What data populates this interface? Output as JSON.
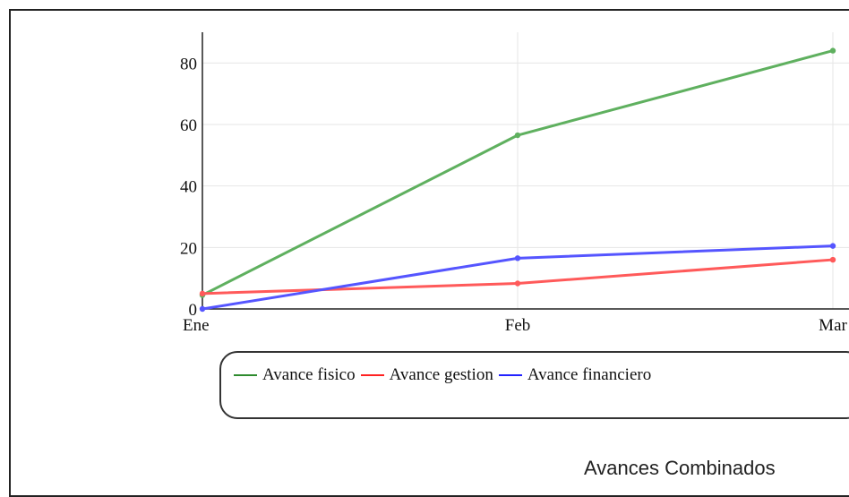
{
  "chart_data": {
    "type": "line",
    "title": "Avances Combinados",
    "categories": [
      "Ene",
      "Feb",
      "Mar"
    ],
    "y_ticks": [
      "0",
      "20",
      "40",
      "60",
      "80"
    ],
    "ylim": [
      0,
      90
    ],
    "grid": true,
    "legend_position": "bottom",
    "series": [
      {
        "name": "Avance fisico",
        "color": "#5fb05f",
        "values": [
          4.5,
          56.5,
          84
        ]
      },
      {
        "name": "Avance gestion",
        "color": "#ff5a5a",
        "values": [
          5,
          8.3,
          16
        ]
      },
      {
        "name": "Avance financiero",
        "color": "#5555ff",
        "values": [
          0,
          16.5,
          20.5
        ]
      }
    ]
  },
  "legend": {
    "items": [
      {
        "label": "Avance fisico",
        "color": "#2e8b2e"
      },
      {
        "label": "Avance gestion",
        "color": "#ff2222"
      },
      {
        "label": "Avance financiero",
        "color": "#2222ff"
      }
    ]
  }
}
